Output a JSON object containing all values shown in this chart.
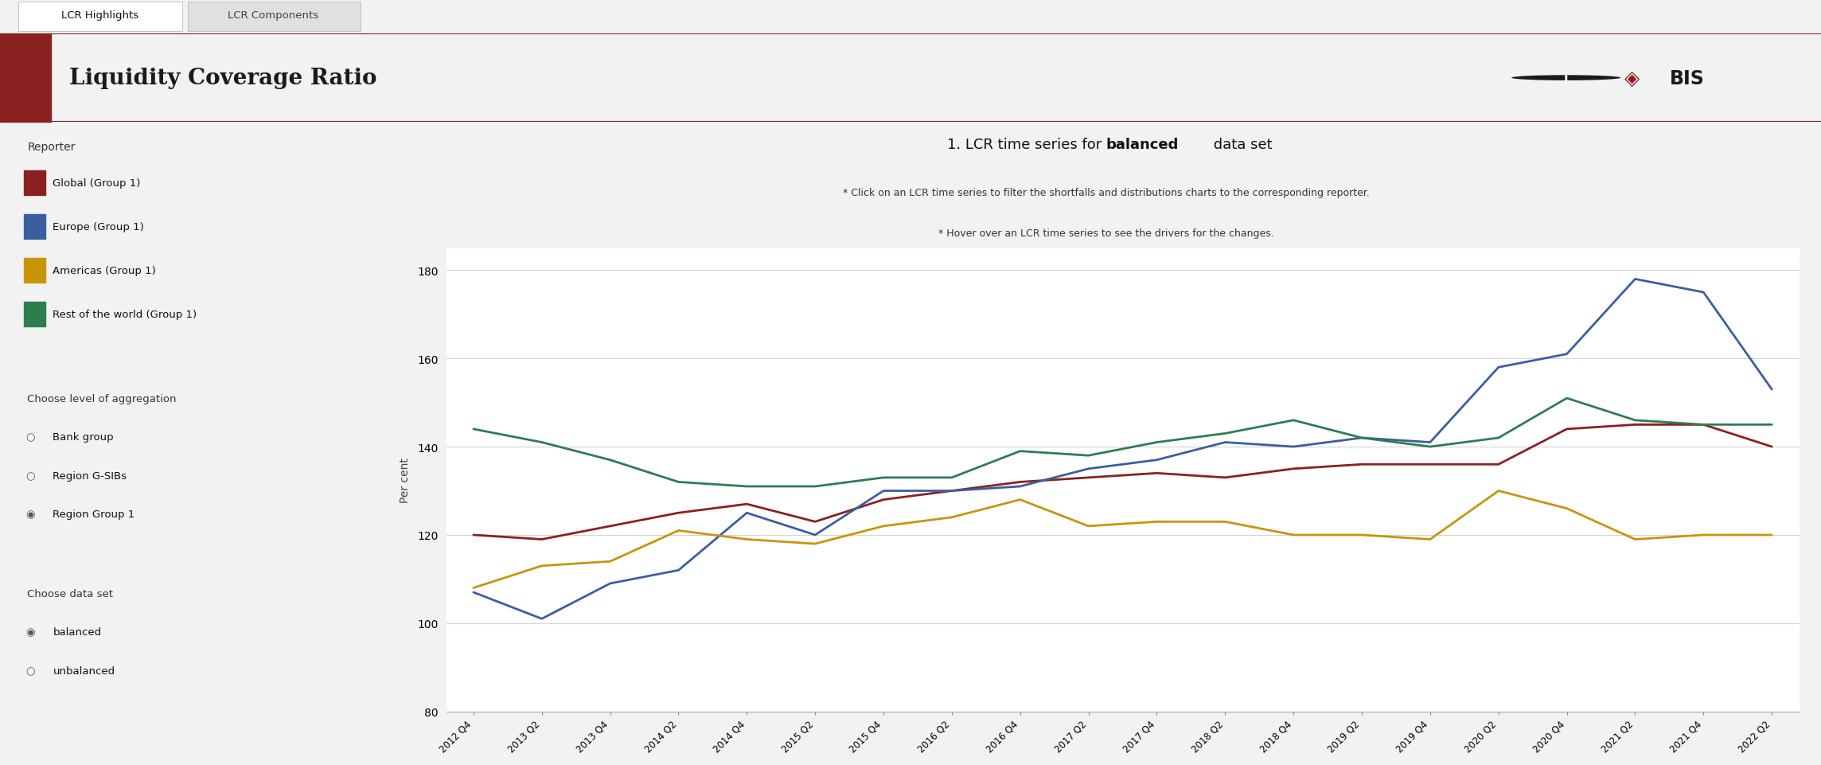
{
  "subtitle1": "* Click on an LCR time series to filter the shortfalls and distributions charts to the corresponding reporter.",
  "subtitle2": "* Hover over an LCR time series to see the drivers for the changes.",
  "ylabel": "Per cent",
  "ylim": [
    80,
    185
  ],
  "yticks": [
    80,
    100,
    120,
    140,
    160,
    180
  ],
  "tab1": "LCR Highlights",
  "tab2": "LCR Components",
  "header_title": "Liquidity Coverage Ratio",
  "legend_reporter": "Reporter",
  "legend_items": [
    "Global (Group 1)",
    "Europe (Group 1)",
    "Americas (Group 1)",
    "Rest of the world (Group 1)"
  ],
  "legend_colors": [
    "#8B2020",
    "#3A5FA0",
    "#C8950A",
    "#2E7D4F"
  ],
  "agg_label": "Choose level of aggregation",
  "agg_options": [
    "Bank group",
    "Region G-SIBs",
    "Region Group 1"
  ],
  "agg_selected": 2,
  "dataset_label": "Choose data set",
  "dataset_options": [
    "balanced",
    "unbalanced"
  ],
  "dataset_selected": 0,
  "x_labels": [
    "2012 Q4",
    "2013 Q2",
    "2013 Q4",
    "2014 Q2",
    "2014 Q4",
    "2015 Q2",
    "2015 Q4",
    "2016 Q2",
    "2016 Q4",
    "2017 Q2",
    "2017 Q4",
    "2018 Q2",
    "2018 Q4",
    "2019 Q2",
    "2019 Q4",
    "2020 Q2",
    "2020 Q4",
    "2021 Q2",
    "2021 Q4",
    "2022 Q2"
  ],
  "global": [
    120,
    119,
    122,
    125,
    127,
    123,
    128,
    130,
    132,
    133,
    134,
    133,
    135,
    136,
    136,
    136,
    144,
    145,
    145,
    140
  ],
  "europe": [
    107,
    101,
    109,
    112,
    125,
    120,
    130,
    130,
    131,
    135,
    137,
    141,
    140,
    142,
    141,
    158,
    161,
    178,
    175,
    153
  ],
  "americas": [
    108,
    113,
    114,
    121,
    119,
    118,
    122,
    124,
    128,
    122,
    123,
    123,
    120,
    120,
    119,
    130,
    126,
    119,
    120,
    120
  ],
  "rest_world": [
    144,
    141,
    137,
    132,
    131,
    131,
    133,
    133,
    139,
    138,
    141,
    143,
    146,
    142,
    140,
    142,
    151,
    146,
    145,
    145
  ],
  "bg_color": "#F2F2F2",
  "plot_bg": "#FFFFFF",
  "header_bg": "#FFFFFF",
  "header_left_color": "#8B2020",
  "tab_bg": "#E0E0E0",
  "tab_active_bg": "#FFFFFF",
  "grid_color": "#CCCCCC",
  "line_colors": [
    "#8B2020",
    "#3A5FA0",
    "#C8950A",
    "#2E7D4F"
  ]
}
